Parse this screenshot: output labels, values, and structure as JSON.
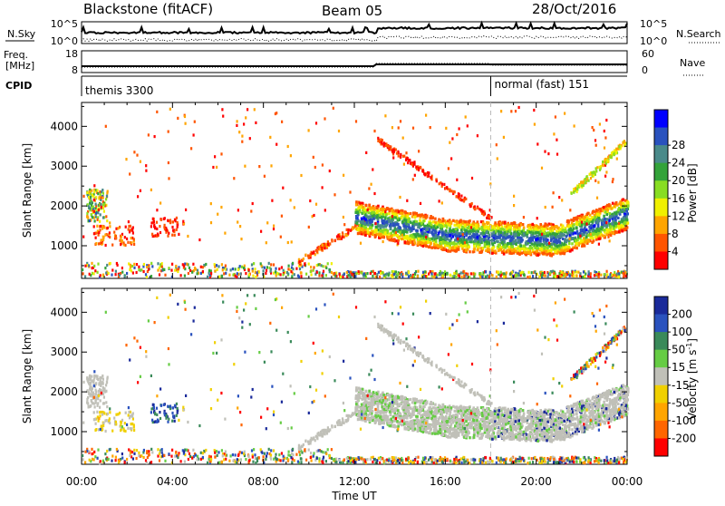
{
  "header": {
    "station": "Blackstone (fitACF)",
    "beam": "Beam 05",
    "date": "28/Oct/2016"
  },
  "noise_panel": {
    "left_label": "N.Sky",
    "right_label": "N.Search",
    "left_ticks": [
      "10^5",
      "10^0"
    ],
    "right_ticks": [
      "10^5",
      "10^0"
    ]
  },
  "freq_panel": {
    "left_label_1": "Freq.",
    "left_label_2": "[MHz]",
    "left_ticks": [
      "18",
      "8"
    ],
    "right_label": "Nave",
    "right_ticks": [
      "60",
      "0"
    ]
  },
  "cpid_panel": {
    "label": "CPID",
    "segments": [
      {
        "name": "themis 3300",
        "start_hour": 0
      },
      {
        "name": "normal (fast) 151",
        "start_hour": 18
      }
    ]
  },
  "chart_data": [
    {
      "type": "heatmap",
      "quantity": "Power",
      "ylabel": "Slant Range [km]",
      "ylim": [
        180,
        4600
      ],
      "yticks": [
        "1000",
        "2000",
        "3000",
        "4000"
      ],
      "colorbar": {
        "label": "Power [dB]",
        "ticks": [
          "4",
          "8",
          "12",
          "16",
          "20",
          "24",
          "28"
        ],
        "colors": [
          "#0000ff",
          "#2a52be",
          "#4a8a8a",
          "#33a33a",
          "#88dd22",
          "#f0f000",
          "#ffa500",
          "#ff5500",
          "#ff0000"
        ]
      }
    },
    {
      "type": "heatmap",
      "quantity": "Velocity",
      "ylabel": "Slant Range [km]",
      "ylim": [
        180,
        4600
      ],
      "yticks": [
        "1000",
        "2000",
        "3000",
        "4000"
      ],
      "colorbar": {
        "label": "Velocity [m s",
        "label_sup": "-1",
        "label_end": "]",
        "ticks": [
          "200",
          "100",
          "50",
          "15",
          "-15",
          "-50",
          "-100",
          "-200"
        ],
        "colors": [
          "#1a2a9a",
          "#2a52be",
          "#3a8a5a",
          "#66cc44",
          "#c0c0b8",
          "#f0d000",
          "#ffa500",
          "#ff6600",
          "#ff0000"
        ]
      }
    }
  ],
  "x_axis": {
    "label": "Time UT",
    "ticks": [
      "00:00",
      "04:00",
      "08:00",
      "12:00",
      "16:00",
      "20:00",
      "00:00"
    ]
  }
}
